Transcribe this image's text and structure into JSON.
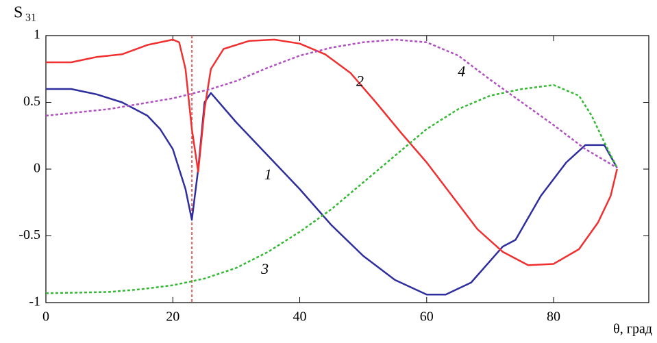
{
  "chart_data": {
    "type": "line",
    "ylabel": {
      "main": "S",
      "sub": "31"
    },
    "xlabel": "θ, град",
    "xlim": [
      0,
      95
    ],
    "ylim": [
      -1,
      1
    ],
    "xticks": [
      0,
      20,
      40,
      60,
      80
    ],
    "yticks": [
      1,
      0.5,
      0,
      -0.5,
      -1
    ],
    "grid": false,
    "vline": {
      "x": 23,
      "color": "#e83030"
    },
    "series": [
      {
        "name": "1",
        "color": "#2e2e9e",
        "dash": "solid",
        "x": [
          0,
          4,
          8,
          12,
          16,
          18,
          20,
          22,
          23,
          24,
          25,
          26,
          30,
          35,
          40,
          45,
          50,
          55,
          60,
          63,
          67,
          72,
          74,
          78,
          82,
          85,
          88,
          90
        ],
        "values": [
          0.6,
          0.6,
          0.56,
          0.5,
          0.4,
          0.3,
          0.15,
          -0.15,
          -0.38,
          0.0,
          0.5,
          0.57,
          0.35,
          0.1,
          -0.15,
          -0.42,
          -0.65,
          -0.83,
          -0.94,
          -0.94,
          -0.85,
          -0.58,
          -0.53,
          -0.2,
          0.05,
          0.18,
          0.18,
          0.01
        ]
      },
      {
        "name": "2",
        "color": "#f03030",
        "dash": "solid",
        "x": [
          0,
          4,
          8,
          12,
          16,
          20,
          21,
          22,
          23,
          24,
          25,
          26,
          28,
          32,
          36,
          40,
          44,
          48,
          52,
          56,
          60,
          64,
          68,
          72,
          76,
          80,
          84,
          87,
          89,
          90
        ],
        "values": [
          0.8,
          0.8,
          0.84,
          0.86,
          0.93,
          0.97,
          0.95,
          0.75,
          0.3,
          -0.02,
          0.45,
          0.75,
          0.9,
          0.96,
          0.97,
          0.94,
          0.86,
          0.72,
          0.5,
          0.27,
          0.05,
          -0.2,
          -0.45,
          -0.62,
          -0.72,
          -0.71,
          -0.6,
          -0.4,
          -0.2,
          0.0
        ]
      },
      {
        "name": "3",
        "color": "#33b833",
        "dash": "dotted",
        "x": [
          0,
          10,
          15,
          20,
          25,
          30,
          35,
          40,
          45,
          50,
          55,
          60,
          65,
          70,
          75,
          80,
          84,
          86,
          88,
          90
        ],
        "values": [
          -0.93,
          -0.92,
          -0.9,
          -0.87,
          -0.82,
          -0.74,
          -0.62,
          -0.47,
          -0.3,
          -0.1,
          0.1,
          0.3,
          0.45,
          0.55,
          0.6,
          0.63,
          0.55,
          0.4,
          0.2,
          0.01
        ]
      },
      {
        "name": "4",
        "color": "#b050c0",
        "dash": "dotted",
        "x": [
          0,
          10,
          20,
          26,
          30,
          35,
          40,
          45,
          50,
          55,
          60,
          65,
          70,
          75,
          80,
          85,
          90
        ],
        "values": [
          0.4,
          0.45,
          0.53,
          0.6,
          0.66,
          0.76,
          0.85,
          0.91,
          0.95,
          0.97,
          0.95,
          0.85,
          0.67,
          0.5,
          0.33,
          0.15,
          0.01
        ]
      }
    ],
    "annotations": [
      {
        "text": "1",
        "x": 35,
        "y": -0.05
      },
      {
        "text": "2",
        "x": 49.5,
        "y": 0.65
      },
      {
        "text": "3",
        "x": 34.5,
        "y": -0.76
      },
      {
        "text": "4",
        "x": 65.5,
        "y": 0.72
      }
    ]
  }
}
